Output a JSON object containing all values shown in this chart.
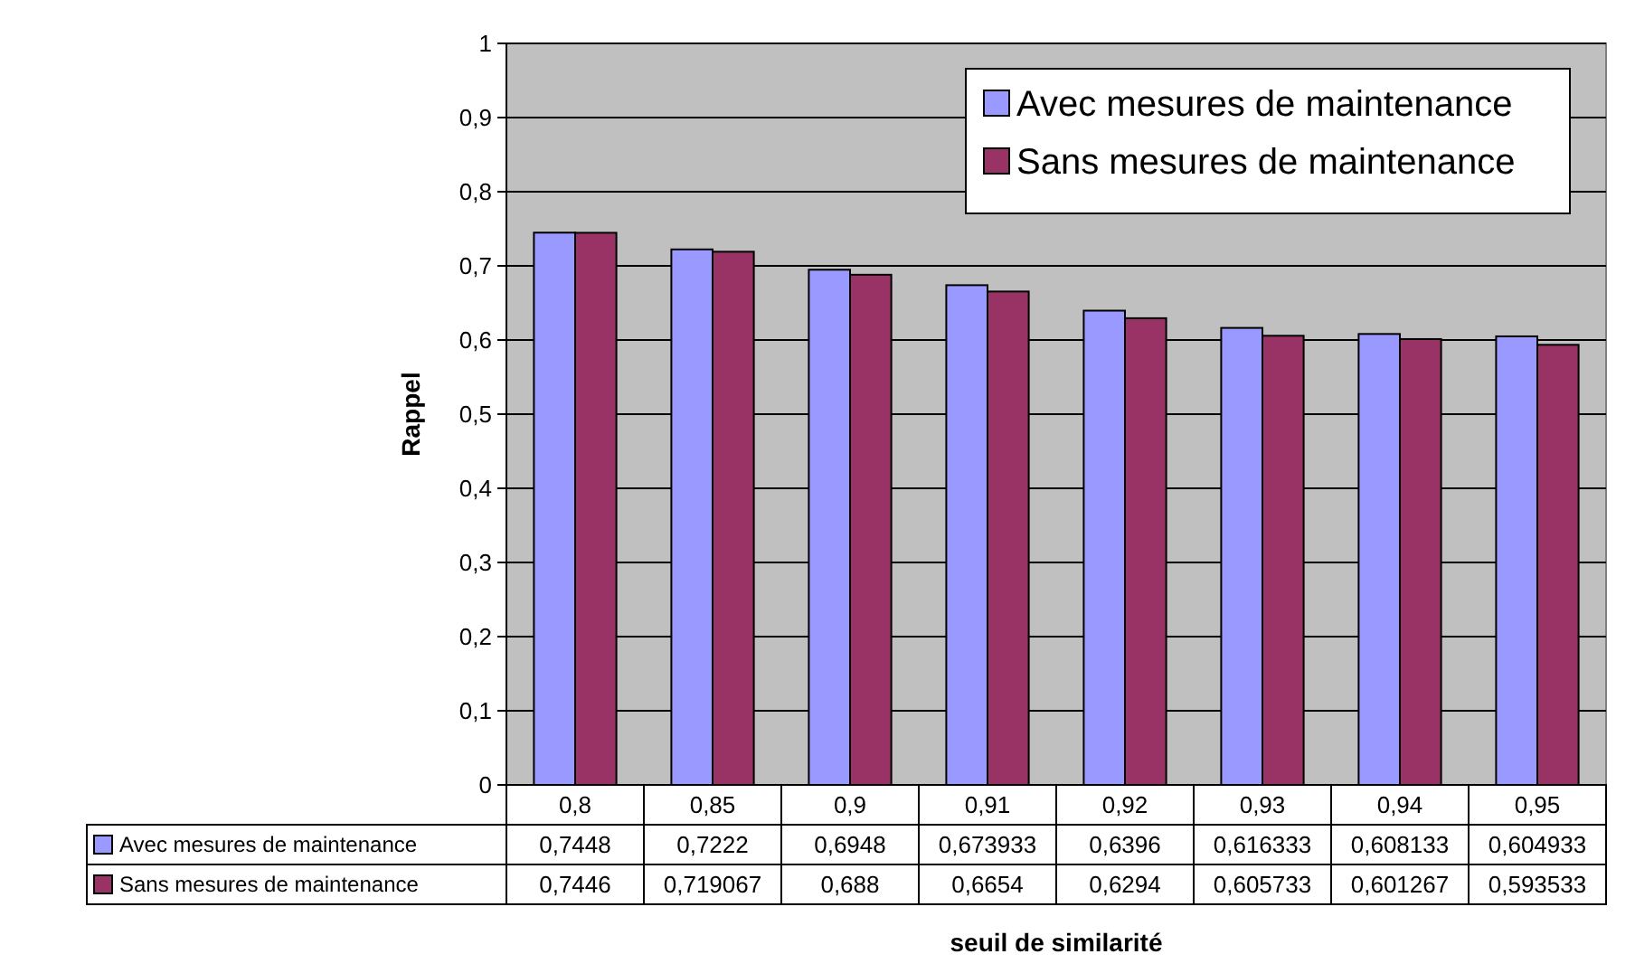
{
  "chart_data": {
    "type": "bar",
    "xlabel": "seuil de similarité",
    "ylabel": "Rappel",
    "categories": [
      "0,8",
      "0,85",
      "0,9",
      "0,91",
      "0,92",
      "0,93",
      "0,94",
      "0,95"
    ],
    "series": [
      {
        "name": "Avec mesures de maintenance",
        "color": "#9999ff",
        "values": [
          0.7448,
          0.7222,
          0.6948,
          0.673933,
          0.6396,
          0.616333,
          0.608133,
          0.604933
        ],
        "value_labels": [
          "0,7448",
          "0,7222",
          "0,6948",
          "0,673933",
          "0,6396",
          "0,616333",
          "0,608133",
          "0,604933"
        ]
      },
      {
        "name": "Sans mesures de maintenance",
        "color": "#993366",
        "values": [
          0.7446,
          0.719067,
          0.688,
          0.6654,
          0.6294,
          0.605733,
          0.601267,
          0.593533
        ],
        "value_labels": [
          "0,7446",
          "0,719067",
          "0,688",
          "0,6654",
          "0,6294",
          "0,605733",
          "0,601267",
          "0,593533"
        ]
      }
    ],
    "ylim": [
      0,
      1
    ],
    "yticks": [
      0,
      {
        "value": 0.1,
        "label": "0,1"
      },
      {
        "value": 0.2,
        "label": "0,2"
      },
      {
        "value": 0.3,
        "label": "0,3"
      },
      {
        "value": 0.4,
        "label": "0,4"
      },
      {
        "value": 0.5,
        "label": "0,5"
      },
      {
        "value": 0.6,
        "label": "0,6"
      },
      {
        "value": 0.7,
        "label": "0,7"
      },
      {
        "value": 0.8,
        "label": "0,8"
      },
      {
        "value": 0.9,
        "label": "0,9"
      },
      1
    ],
    "grid": "y",
    "legend": "top right"
  }
}
